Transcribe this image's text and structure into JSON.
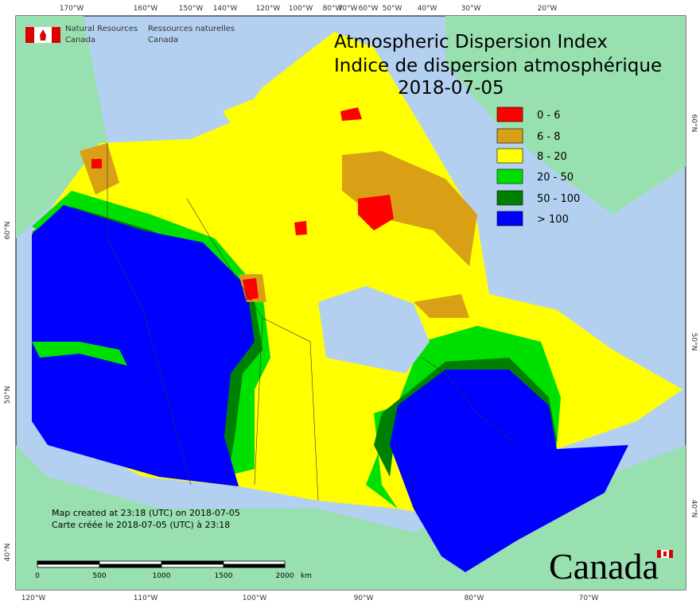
{
  "header": {
    "org_en": [
      "Natural Resources",
      "Canada"
    ],
    "org_fr": [
      "Ressources naturelles",
      "Canada"
    ]
  },
  "title": {
    "en": "Atmospheric Dispersion Index",
    "fr": "Indice de dispersion atmosphérique",
    "date": "2018-07-05"
  },
  "legend": [
    {
      "label": "0 - 6",
      "color": "#ff0000"
    },
    {
      "label": "6 - 8",
      "color": "#d9a016"
    },
    {
      "label": "8 - 20",
      "color": "#ffff00"
    },
    {
      "label": "20 - 50",
      "color": "#00e000"
    },
    {
      "label": "50 - 100",
      "color": "#008000"
    },
    {
      "label": "> 100",
      "color": "#0000ff"
    }
  ],
  "top_labels": [
    "170°W",
    "160°W",
    "150°W",
    "140°W",
    "120°W",
    "100°W",
    "80°W",
    "70°W",
    "60°W",
    "50°W",
    "40°W",
    "30°W",
    "20°W"
  ],
  "bottom_labels": [
    "120°W",
    "110°W",
    "100°W",
    "90°W",
    "80°W",
    "70°W"
  ],
  "left_labels": [
    "60°N",
    "50°N",
    "40°N"
  ],
  "right_labels": [
    "60°N",
    "50°N",
    "40°N"
  ],
  "credits": [
    "Map created at 23:18 (UTC) on 2018-07-05",
    "Carte créée le 2018-07-05 (UTC) à 23:18"
  ],
  "scale": {
    "labels": [
      "0",
      "500",
      "1000",
      "1500",
      "2000"
    ],
    "unit": "km"
  },
  "wordmark": "Canada"
}
